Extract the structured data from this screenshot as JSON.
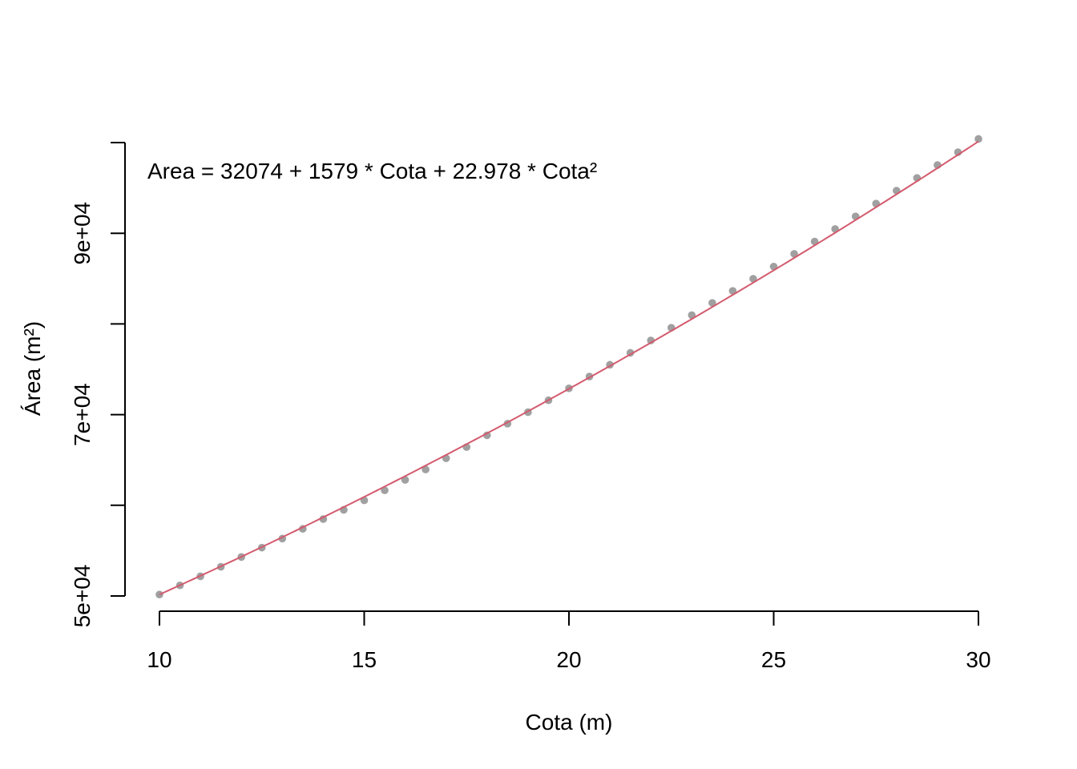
{
  "chart_data": {
    "type": "scatter",
    "xlabel": "Cota (m)",
    "ylabel": "Área (m²)",
    "annotation": "Area = 32074 + 1579 * Cota + 22.978 * Cota²",
    "xlim": [
      10,
      30
    ],
    "ylim": [
      50000,
      100000
    ],
    "x_ticks": [
      10,
      15,
      20,
      25,
      30
    ],
    "x_tick_labels": [
      "10",
      "15",
      "20",
      "25",
      "30"
    ],
    "y_ticks": [
      50000,
      60000,
      70000,
      80000,
      90000,
      100000
    ],
    "y_tick_labels": [
      "5e+04",
      "",
      "7e+04",
      "",
      "9e+04",
      ""
    ],
    "grid": false,
    "series": [
      {
        "kind": "points",
        "color": "#a0a0a0",
        "x": [
          10,
          10.5,
          11,
          11.5,
          12,
          12.5,
          13,
          13.5,
          14,
          14.5,
          15,
          15.5,
          16,
          16.5,
          17,
          17.5,
          18,
          18.5,
          19,
          19.5,
          20,
          20.5,
          21,
          21.5,
          22,
          22.5,
          23,
          23.5,
          24,
          24.5,
          25,
          25.5,
          26,
          26.5,
          27,
          27.5,
          28,
          28.5,
          29,
          29.5,
          30
        ],
        "y": [
          50160,
          51170,
          52170,
          53220,
          54300,
          55330,
          56330,
          57400,
          58480,
          59500,
          60550,
          61650,
          62800,
          63950,
          65180,
          66420,
          67720,
          69000,
          70270,
          71580,
          72900,
          74200,
          75500,
          76820,
          78180,
          79580,
          80970,
          82320,
          83640,
          84980,
          86330,
          87730,
          89090,
          90470,
          91860,
          93270,
          94700,
          96100,
          97520,
          98940,
          100400
        ]
      },
      {
        "kind": "fit-line",
        "color": "#d45a6e",
        "equation": {
          "a": 32074,
          "b": 1579,
          "c": 22.978
        },
        "x_range": [
          10,
          30
        ]
      }
    ]
  }
}
